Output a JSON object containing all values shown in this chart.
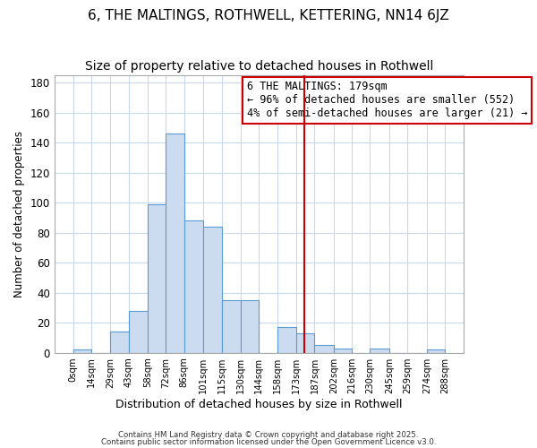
{
  "title": "6, THE MALTINGS, ROTHWELL, KETTERING, NN14 6JZ",
  "subtitle": "Size of property relative to detached houses in Rothwell",
  "xlabel": "Distribution of detached houses by size in Rothwell",
  "ylabel": "Number of detached properties",
  "bar_edges": [
    0,
    14,
    29,
    43,
    58,
    72,
    86,
    101,
    115,
    130,
    144,
    158,
    173,
    187,
    202,
    216,
    230,
    245,
    259,
    274,
    288
  ],
  "bar_heights": [
    2,
    0,
    14,
    28,
    99,
    146,
    88,
    84,
    35,
    35,
    0,
    17,
    13,
    5,
    3,
    0,
    3,
    0,
    0,
    2
  ],
  "bar_color": "#ccdcf0",
  "bar_edgecolor": "#5b9bd5",
  "tick_labels": [
    "0sqm",
    "14sqm",
    "29sqm",
    "43sqm",
    "58sqm",
    "72sqm",
    "86sqm",
    "101sqm",
    "115sqm",
    "130sqm",
    "144sqm",
    "158sqm",
    "173sqm",
    "187sqm",
    "202sqm",
    "216sqm",
    "230sqm",
    "245sqm",
    "259sqm",
    "274sqm",
    "288sqm"
  ],
  "vline_x": 179,
  "vline_color": "#cc0000",
  "annotation_title": "6 THE MALTINGS: 179sqm",
  "annotation_line1": "← 96% of detached houses are smaller (552)",
  "annotation_line2": "4% of semi-detached houses are larger (21) →",
  "ylim": [
    0,
    185
  ],
  "yticks": [
    0,
    20,
    40,
    60,
    80,
    100,
    120,
    140,
    160,
    180
  ],
  "footer1": "Contains HM Land Registry data © Crown copyright and database right 2025.",
  "footer2": "Contains public sector information licensed under the Open Government Licence v3.0.",
  "background_color": "#ffffff",
  "grid_color": "#c8d8ee",
  "title_fontsize": 11,
  "subtitle_fontsize": 10,
  "annotation_fontsize": 8.5
}
